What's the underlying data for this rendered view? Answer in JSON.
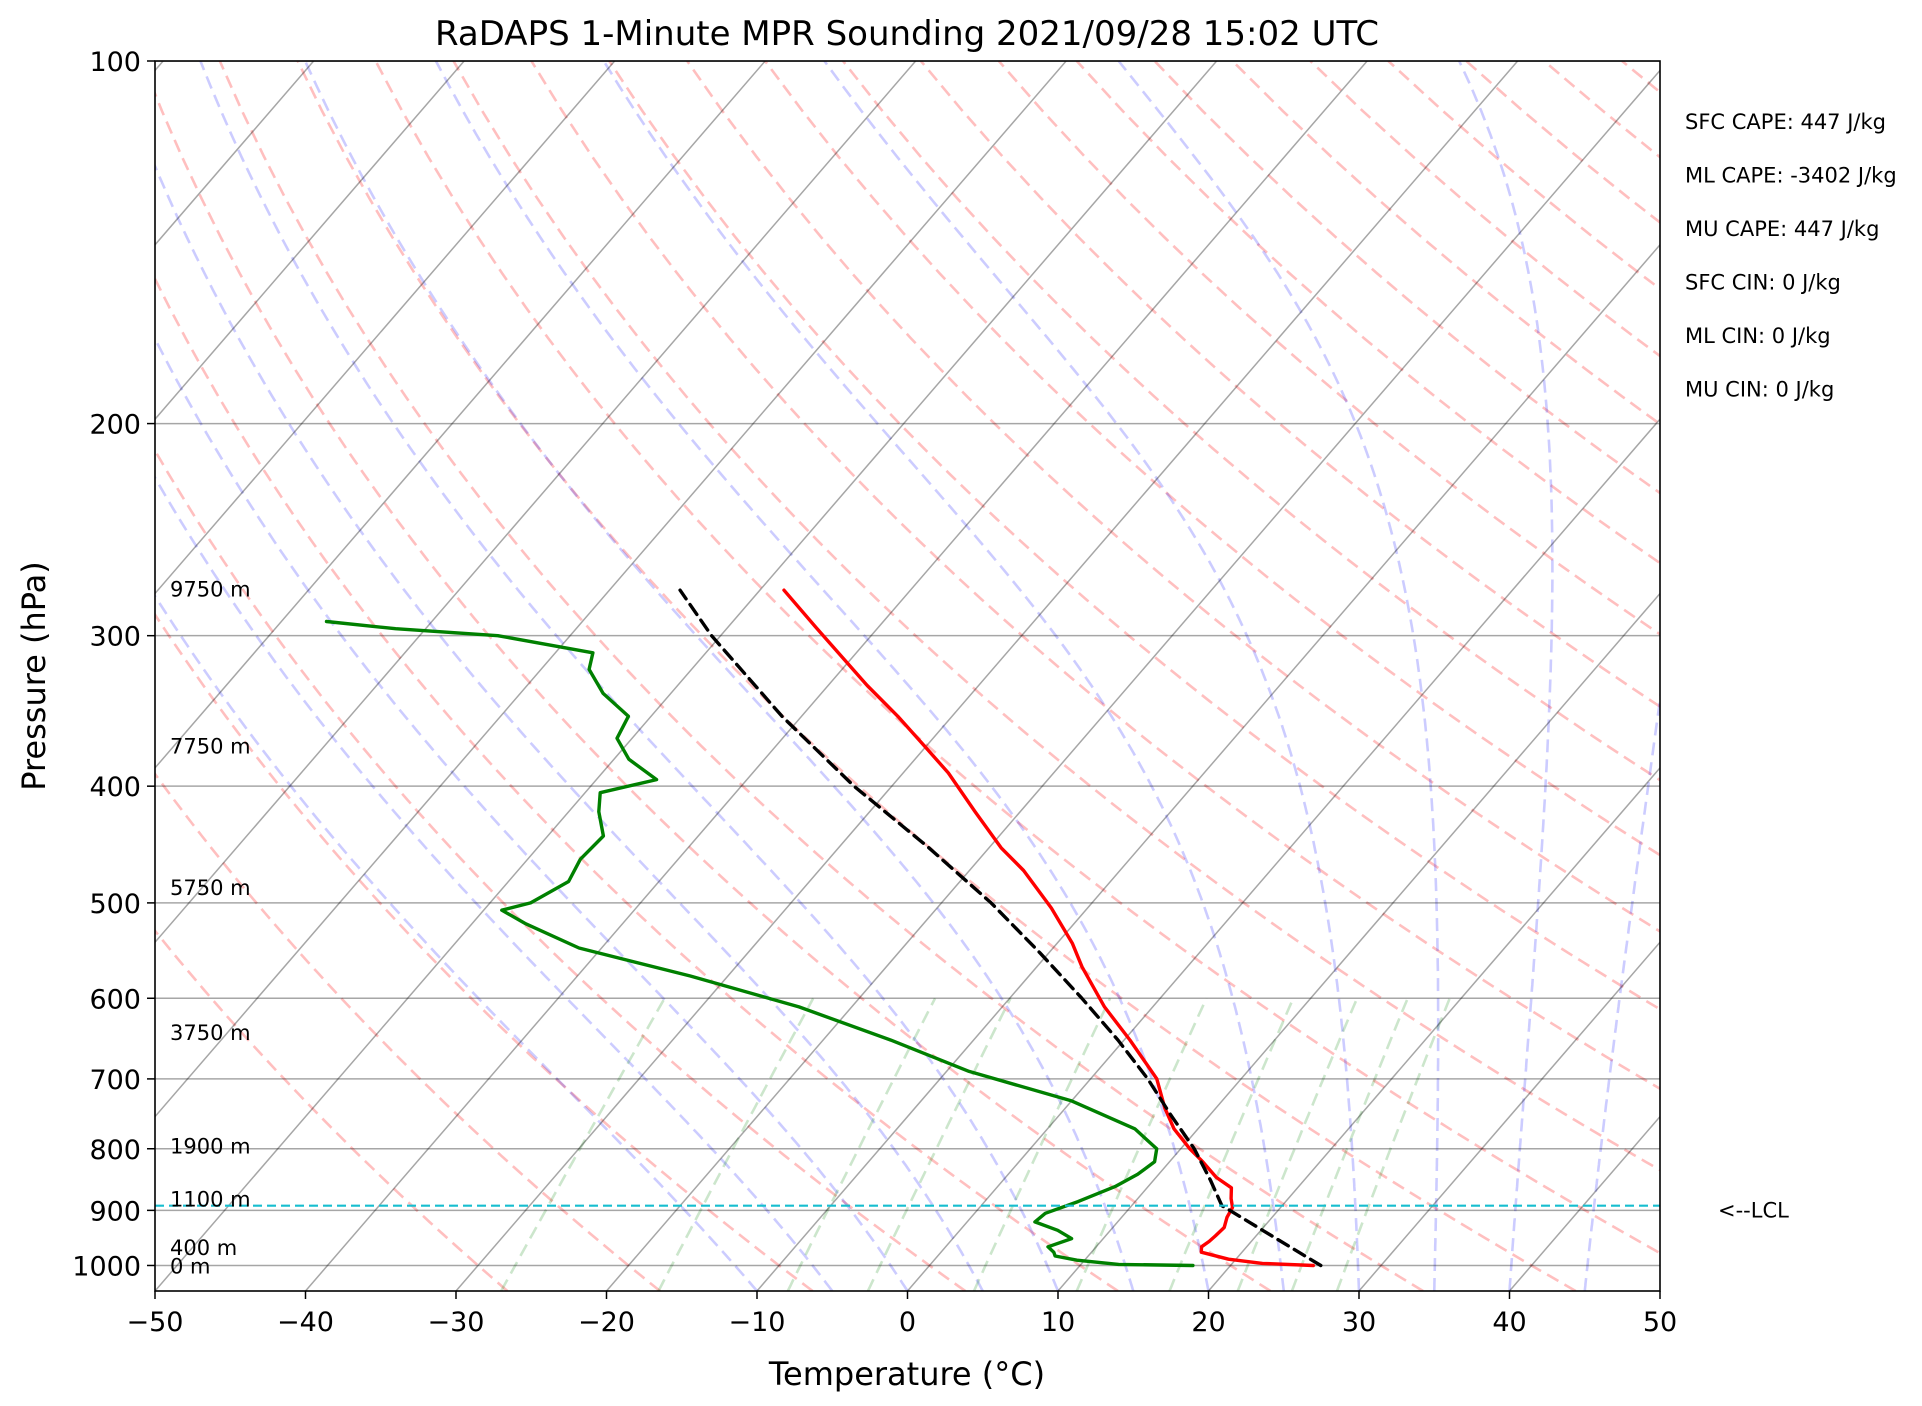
{
  "chart_data": {
    "type": "line",
    "title": "RaDAPS 1-Minute MPR Sounding 2021/09/28 15:02 UTC",
    "xlabel": "Temperature (°C)",
    "ylabel": "Pressure (hPa)",
    "xlim": [
      -50,
      50
    ],
    "ylim": [
      1050,
      100
    ],
    "y_scale": "log",
    "x_ticks": [
      "−50",
      "−40",
      "−30",
      "−20",
      "−10",
      "0",
      "10",
      "20",
      "30",
      "40",
      "50"
    ],
    "y_ticks": [
      "100",
      "200",
      "300",
      "400",
      "500",
      "600",
      "700",
      "800",
      "900",
      "1000"
    ],
    "grid": true,
    "height_labels": [
      {
        "p": 1000,
        "label": "0 m"
      },
      {
        "p": 965,
        "label": "400 m"
      },
      {
        "p": 880,
        "label": "1100 m"
      },
      {
        "p": 795,
        "label": "1900 m"
      },
      {
        "p": 640,
        "label": "3750 m"
      },
      {
        "p": 485,
        "label": "5750 m"
      },
      {
        "p": 370,
        "label": "7750 m"
      },
      {
        "p": 274,
        "label": "9750 m"
      }
    ],
    "stats": [
      "SFC CAPE: 447 J/kg",
      "ML CAPE: -3402 J/kg",
      "MU CAPE: 447 J/kg",
      "SFC CIN: 0 J/kg",
      "ML CIN: 0 J/kg",
      "MU CIN: 0 J/kg"
    ],
    "lcl": {
      "p": 892,
      "label": "<--LCL"
    },
    "series": [
      {
        "key": "temperature",
        "color": "#ff0000",
        "style": "solid",
        "points": [
          [
            1000,
            25.5
          ],
          [
            996,
            22.0
          ],
          [
            988,
            19.5
          ],
          [
            975,
            17.3
          ],
          [
            965,
            17.0
          ],
          [
            955,
            17.2
          ],
          [
            945,
            17.3
          ],
          [
            930,
            17.4
          ],
          [
            912,
            17.0
          ],
          [
            895,
            16.8
          ],
          [
            880,
            16.2
          ],
          [
            862,
            15.6
          ],
          [
            845,
            14.0
          ],
          [
            820,
            12.2
          ],
          [
            800,
            10.6
          ],
          [
            770,
            8.4
          ],
          [
            740,
            6.6
          ],
          [
            700,
            4.4
          ],
          [
            650,
            0.4
          ],
          [
            610,
            -3.2
          ],
          [
            565,
            -7.0
          ],
          [
            540,
            -9.0
          ],
          [
            505,
            -12.4
          ],
          [
            470,
            -16.4
          ],
          [
            450,
            -19.2
          ],
          [
            420,
            -23.0
          ],
          [
            390,
            -27.0
          ],
          [
            370,
            -30.2
          ],
          [
            350,
            -33.6
          ],
          [
            330,
            -37.4
          ],
          [
            310,
            -41.2
          ],
          [
            295,
            -44.2
          ],
          [
            275,
            -48.4
          ]
        ]
      },
      {
        "key": "dewpoint",
        "color": "#008000",
        "style": "solid",
        "points": [
          [
            1000,
            17.5
          ],
          [
            998,
            12.5
          ],
          [
            990,
            9.5
          ],
          [
            982,
            7.8
          ],
          [
            975,
            7.5
          ],
          [
            965,
            6.8
          ],
          [
            950,
            7.9
          ],
          [
            935,
            6.5
          ],
          [
            920,
            4.5
          ],
          [
            905,
            4.7
          ],
          [
            885,
            6.2
          ],
          [
            860,
            7.8
          ],
          [
            840,
            8.6
          ],
          [
            820,
            9.0
          ],
          [
            800,
            8.4
          ],
          [
            770,
            5.8
          ],
          [
            730,
            0.0
          ],
          [
            690,
            -8.5
          ],
          [
            650,
            -15.5
          ],
          [
            610,
            -23.5
          ],
          [
            575,
            -32.5
          ],
          [
            545,
            -41.5
          ],
          [
            520,
            -46.5
          ],
          [
            507,
            -48.8
          ],
          [
            500,
            -47.3
          ],
          [
            480,
            -46.0
          ],
          [
            460,
            -46.5
          ],
          [
            440,
            -46.3
          ],
          [
            420,
            -48.0
          ],
          [
            405,
            -49.0
          ],
          [
            395,
            -46.0
          ],
          [
            380,
            -49.0
          ],
          [
            365,
            -51.0
          ],
          [
            350,
            -51.5
          ],
          [
            335,
            -54.5
          ],
          [
            320,
            -56.8
          ],
          [
            310,
            -57.5
          ],
          [
            300,
            -64.8
          ],
          [
            296,
            -72.0
          ],
          [
            292,
            -77.0
          ]
        ]
      },
      {
        "key": "parcel",
        "color": "#000000",
        "style": "dashed",
        "points": [
          [
            1000,
            26.0
          ],
          [
            950,
            21.5
          ],
          [
            900,
            16.8
          ],
          [
            892,
            16.0
          ],
          [
            850,
            13.8
          ],
          [
            800,
            10.9
          ],
          [
            750,
            7.4
          ],
          [
            700,
            3.8
          ],
          [
            650,
            -0.4
          ],
          [
            600,
            -5.2
          ],
          [
            550,
            -10.6
          ],
          [
            500,
            -16.7
          ],
          [
            450,
            -24.0
          ],
          [
            400,
            -32.5
          ],
          [
            350,
            -41.3
          ],
          [
            300,
            -50.6
          ],
          [
            275,
            -55.3
          ]
        ]
      }
    ]
  }
}
